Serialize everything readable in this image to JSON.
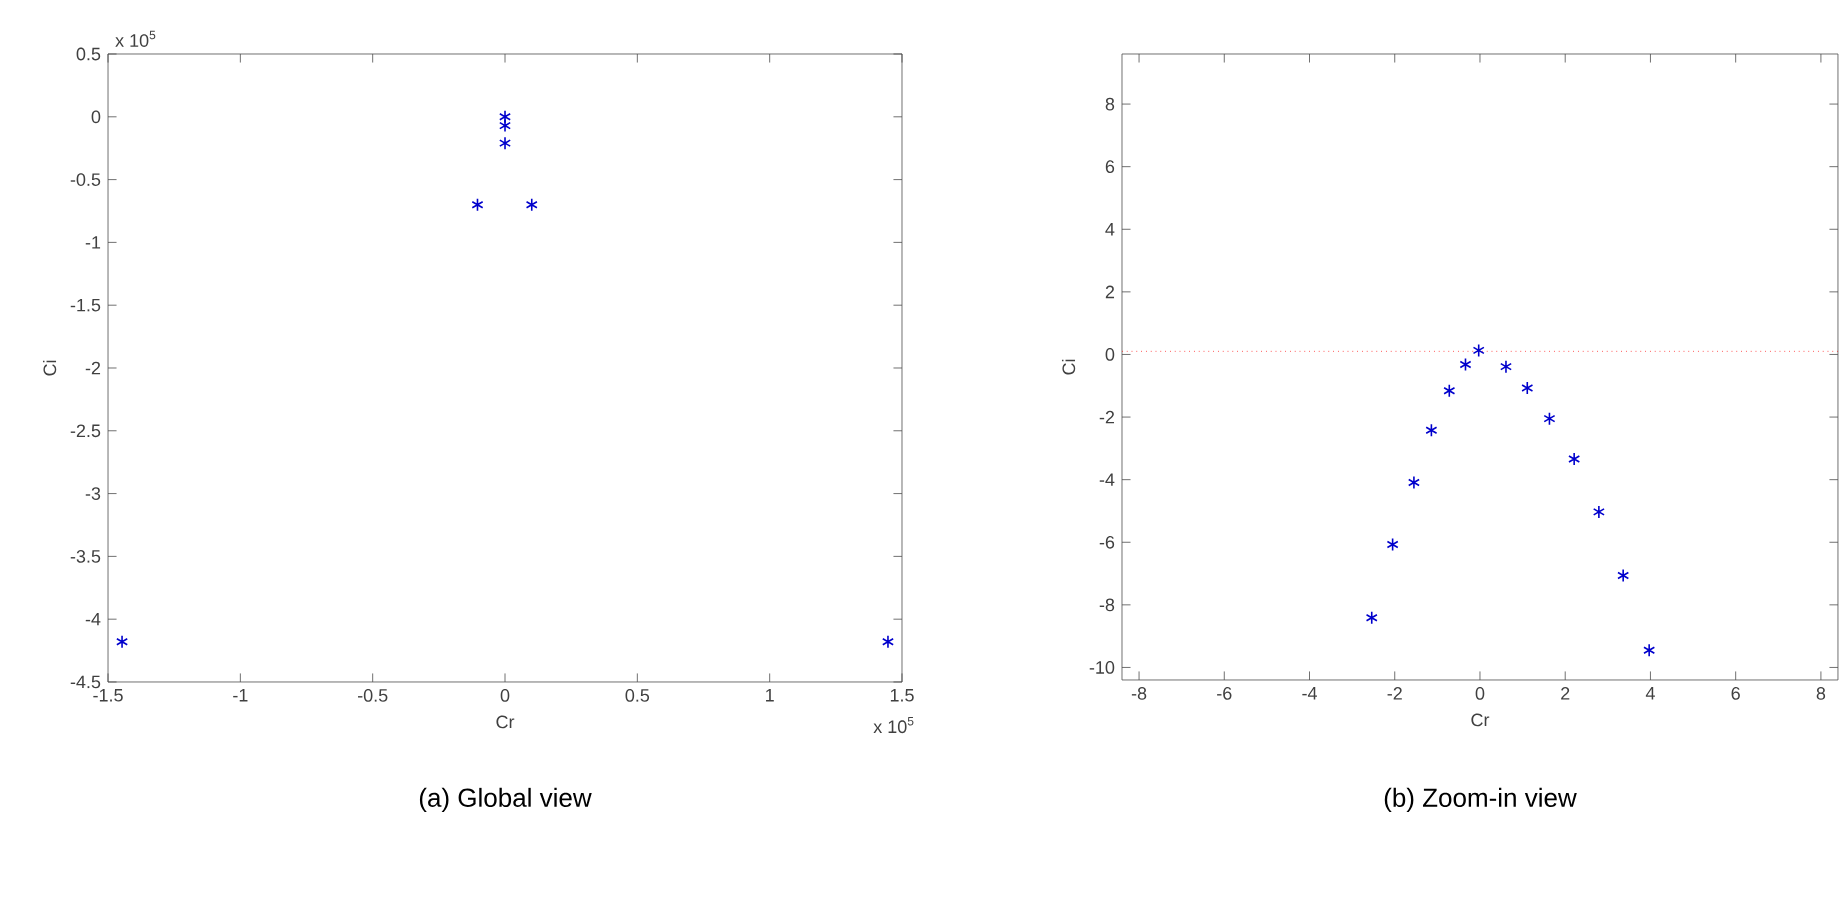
{
  "chart_data": [
    {
      "type": "scatter",
      "xlabel": "Cr",
      "ylabel": "Ci",
      "xlim": [
        -1.5,
        1.5
      ],
      "ylim": [
        -4.5,
        0.5
      ],
      "xticks": [
        -1.5,
        -1,
        -0.5,
        0,
        0.5,
        1,
        1.5
      ],
      "yticks": [
        -4.5,
        -4,
        -3.5,
        -3,
        -2.5,
        -2,
        -1.5,
        -1,
        -0.5,
        0,
        0.5
      ],
      "marker": "cross",
      "grid": false,
      "series": [
        {
          "color": "#0000cc",
          "x": [
            -1.447,
            1.447,
            -0.104,
            0.101,
            0,
            0,
            0
          ],
          "values": [
            -4.18,
            -4.18,
            -0.7,
            -0.7,
            -0.21,
            -0.07,
            0
          ]
        }
      ],
      "annotations": [
        "x 10$^{5}$",
        "x 10$^{5}$",
        "(a) Global view"
      ]
    },
    {
      "type": "scatter",
      "xlabel": "Cr",
      "ylabel": "Ci",
      "xlim": [
        -8.4,
        8.4
      ],
      "ylim": [
        -10.4,
        9.6
      ],
      "xticks": [
        -8,
        -6,
        -4,
        -2,
        0,
        2,
        4,
        6,
        8
      ],
      "yticks": [
        -10,
        -8,
        -6,
        -4,
        -2,
        0,
        2,
        4,
        6,
        8
      ],
      "marker": "cross",
      "grid": false,
      "series": [
        {
          "color": "#0000cc",
          "x": [
            -2.54,
            -2.05,
            -1.55,
            -1.14,
            -0.72,
            -0.34,
            -0.03,
            0.61,
            1.11,
            1.63,
            2.21,
            2.79,
            3.36,
            3.97
          ],
          "values": [
            -8.41,
            -6.07,
            -4.09,
            -2.42,
            -1.16,
            -0.32,
            0.13,
            -0.39,
            -1.07,
            -2.05,
            -3.34,
            -5.03,
            -7.06,
            -9.45
          ]
        }
      ],
      "ref_lines": [
        {
          "axis": "y",
          "value": 0.1,
          "color": "#ff0000",
          "line_style": "dotted"
        }
      ],
      "annotations": [
        "(b) Zoom-in view"
      ]
    }
  ]
}
